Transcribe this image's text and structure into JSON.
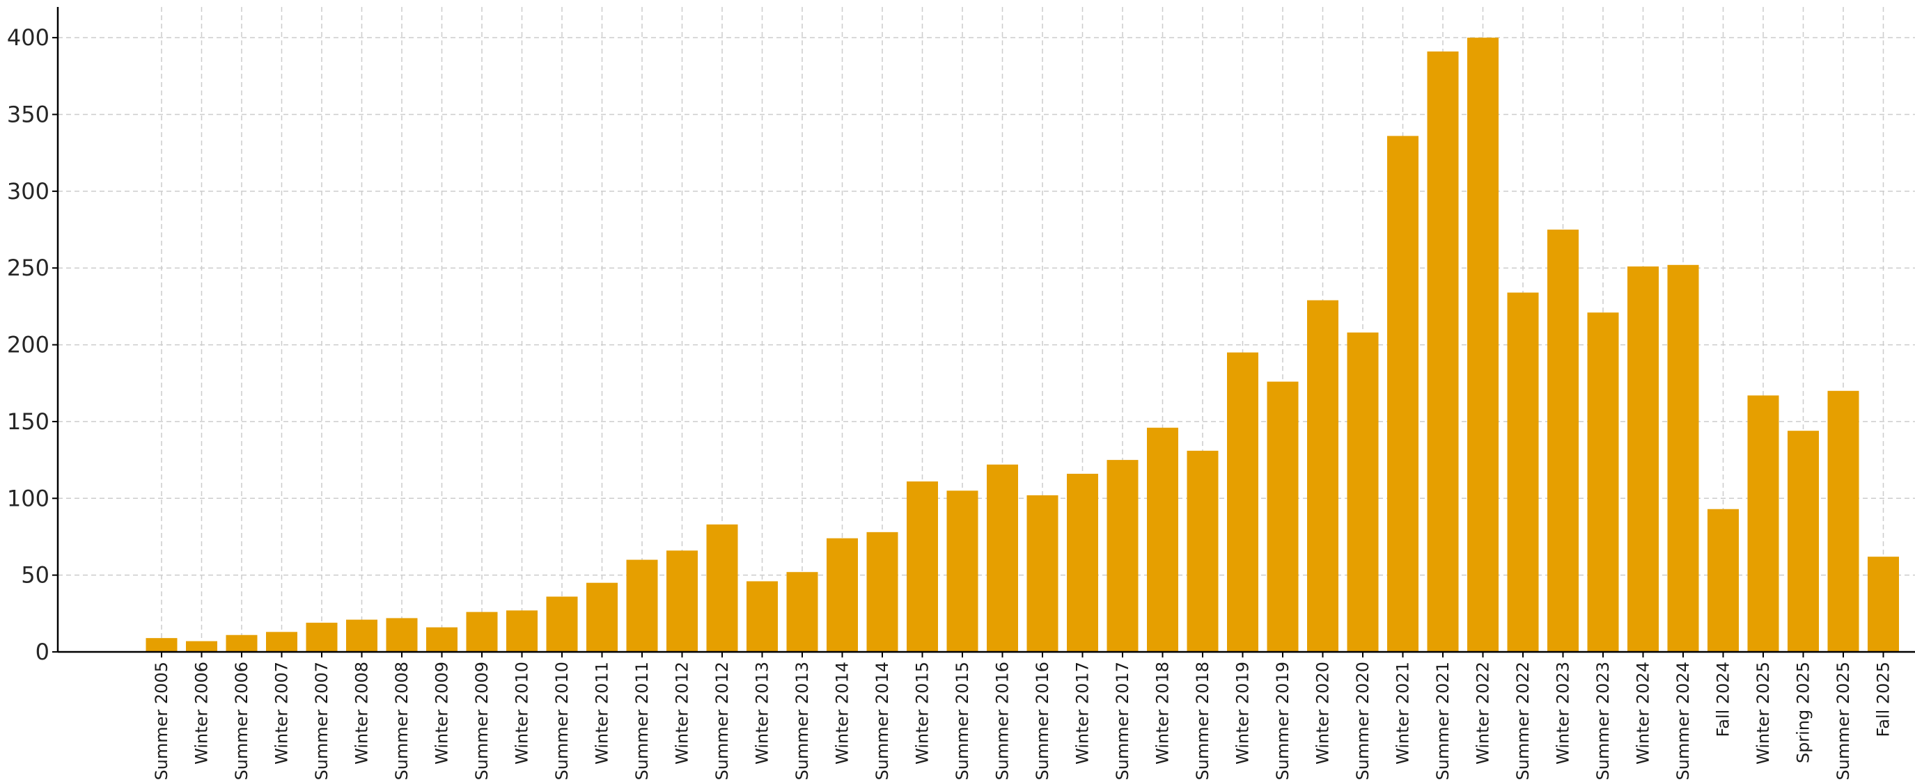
{
  "chart_data": {
    "type": "bar",
    "title": "",
    "xlabel": "",
    "ylabel": "",
    "ylim": [
      0,
      420
    ],
    "yticks": [
      0,
      50,
      100,
      150,
      200,
      250,
      300,
      350,
      400
    ],
    "grid": true,
    "bar_color": "#E69F00",
    "categories": [
      "Summer 2005",
      "Winter 2006",
      "Summer 2006",
      "Winter 2007",
      "Summer 2007",
      "Winter 2008",
      "Summer 2008",
      "Winter 2009",
      "Summer 2009",
      "Winter 2010",
      "Summer 2010",
      "Winter 2011",
      "Summer 2011",
      "Winter 2012",
      "Summer 2012",
      "Winter 2013",
      "Summer 2013",
      "Winter 2014",
      "Summer 2014",
      "Winter 2015",
      "Summer 2015",
      "Summer 2016",
      "Summer 2016",
      "Winter 2017",
      "Summer 2017",
      "Winter 2018",
      "Summer 2018",
      "Winter 2019",
      "Summer 2019",
      "Winter 2020",
      "Summer 2020",
      "Winter 2021",
      "Summer 2021",
      "Winter 2022",
      "Summer 2022",
      "Winter 2023",
      "Summer 2023",
      "Winter 2024",
      "Summer 2024",
      "Fall 2024",
      "Winter 2025",
      "Spring 2025",
      "Summer 2025",
      "Fall 2025"
    ],
    "values": [
      9,
      7,
      11,
      13,
      19,
      21,
      22,
      16,
      26,
      27,
      36,
      45,
      60,
      66,
      83,
      46,
      52,
      74,
      78,
      111,
      105,
      122,
      102,
      116,
      125,
      146,
      131,
      195,
      176,
      229,
      208,
      336,
      391,
      400,
      234,
      275,
      221,
      251,
      252,
      93,
      167,
      144,
      170,
      62
    ]
  }
}
